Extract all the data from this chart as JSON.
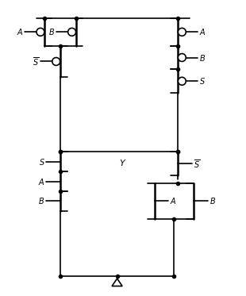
{
  "bg_color": "#ffffff",
  "lw": 1.2,
  "lw_thick": 1.8,
  "fig_w": 3.1,
  "fig_h": 3.73,
  "dpi": 100
}
